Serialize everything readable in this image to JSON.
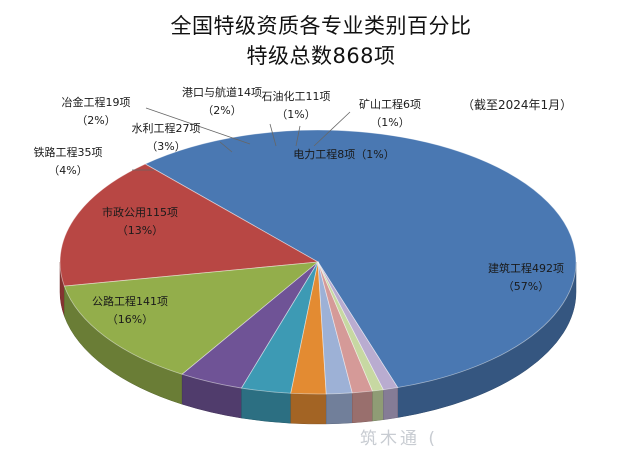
{
  "chart_data": {
    "type": "pie",
    "title": "全国特级资质各专业类别百分比",
    "subtitle": "特级总数868项",
    "note": "（截至2024年1月）",
    "slices": [
      {
        "label": "建筑工程492项",
        "percent_label": "（57%）",
        "value": 492,
        "color": "#4a78b2"
      },
      {
        "label": "公路工程141项",
        "percent_label": "（16%）",
        "value": 141,
        "color": "#b84744"
      },
      {
        "label": "市政公用115项",
        "percent_label": "（13%）",
        "value": 115,
        "color": "#93ae4b"
      },
      {
        "label": "铁路工程35项",
        "percent_label": "（4%）",
        "value": 35,
        "color": "#6f5396"
      },
      {
        "label": "水利工程27项",
        "percent_label": "（3%）",
        "value": 27,
        "color": "#3d9ab4"
      },
      {
        "label": "冶金工程19项",
        "percent_label": "（2%）",
        "value": 19,
        "color": "#e38b32"
      },
      {
        "label": "港口与航道14项",
        "percent_label": "（2%）",
        "value": 14,
        "color": "#9db1d6"
      },
      {
        "label": "石油化工11项",
        "percent_label": "（1%）",
        "value": 11,
        "color": "#d59a98"
      },
      {
        "label": "矿山工程6项",
        "percent_label": "（1%）",
        "value": 6,
        "color": "#c7d8a2"
      },
      {
        "label": "电力工程8项",
        "percent_label": "（1%）",
        "value": 8,
        "color": "#b9acd0"
      }
    ]
  },
  "watermark": "筑木通 ("
}
